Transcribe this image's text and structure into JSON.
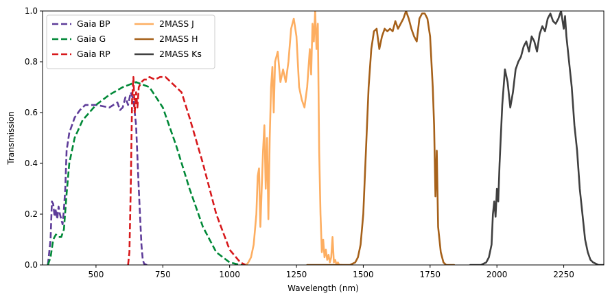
{
  "chart_data": {
    "type": "line",
    "title": "",
    "xlabel": "Wavelength (nm)",
    "ylabel": "Transmission",
    "xlim": [
      300,
      2400
    ],
    "ylim": [
      0,
      1
    ],
    "xticks": [
      500,
      750,
      1000,
      1250,
      1500,
      1750,
      2000,
      2250
    ],
    "yticks": [
      0.0,
      0.2,
      0.4,
      0.6,
      0.8,
      1.0
    ],
    "xtick_labels": [
      "500",
      "750",
      "1000",
      "1250",
      "1500",
      "1750",
      "2000",
      "2250"
    ],
    "ytick_labels": [
      "0.0",
      "0.2",
      "0.4",
      "0.6",
      "0.8",
      "1.0"
    ],
    "grid": false,
    "legend": {
      "placement": "top-left",
      "columns": 2
    },
    "series": [
      {
        "name": "Gaia BP",
        "color": "#5e3c99",
        "dash": "dashed",
        "x": [
          320,
          330,
          335,
          340,
          345,
          350,
          355,
          360,
          365,
          370,
          375,
          380,
          385,
          390,
          400,
          420,
          440,
          460,
          500,
          550,
          580,
          590,
          600,
          610,
          620,
          630,
          640,
          650,
          660,
          670,
          675,
          680,
          690,
          700
        ],
        "y": [
          0.0,
          0.1,
          0.25,
          0.24,
          0.19,
          0.22,
          0.18,
          0.23,
          0.2,
          0.18,
          0.16,
          0.22,
          0.3,
          0.45,
          0.52,
          0.58,
          0.61,
          0.63,
          0.63,
          0.62,
          0.64,
          0.61,
          0.62,
          0.66,
          0.63,
          0.68,
          0.65,
          0.55,
          0.3,
          0.08,
          0.02,
          0.005,
          0.0,
          0.0
        ]
      },
      {
        "name": "Gaia G",
        "color": "#008837",
        "dash": "dashed",
        "x": [
          320,
          330,
          340,
          350,
          360,
          370,
          380,
          390,
          400,
          420,
          450,
          500,
          550,
          600,
          650,
          700,
          750,
          800,
          850,
          900,
          950,
          1000,
          1020,
          1040,
          1050
        ],
        "y": [
          0.0,
          0.03,
          0.1,
          0.12,
          0.11,
          0.11,
          0.14,
          0.28,
          0.4,
          0.5,
          0.57,
          0.63,
          0.67,
          0.7,
          0.72,
          0.7,
          0.62,
          0.47,
          0.3,
          0.15,
          0.05,
          0.01,
          0.005,
          0.0,
          0.0
        ]
      },
      {
        "name": "Gaia RP",
        "color": "#d7191c",
        "dash": "dashed",
        "x": [
          620,
          625,
          630,
          635,
          640,
          645,
          650,
          655,
          660,
          670,
          680,
          690,
          700,
          720,
          740,
          760,
          780,
          800,
          820,
          850,
          900,
          950,
          1000,
          1040,
          1060,
          1070
        ],
        "y": [
          0.0,
          0.05,
          0.3,
          0.65,
          0.74,
          0.6,
          0.68,
          0.62,
          0.7,
          0.72,
          0.73,
          0.73,
          0.74,
          0.73,
          0.74,
          0.74,
          0.72,
          0.7,
          0.68,
          0.58,
          0.4,
          0.2,
          0.06,
          0.01,
          0.0,
          0.0
        ]
      },
      {
        "name": "2MASS J",
        "color": "#fdae61",
        "dash": "solid",
        "x": [
          1062,
          1070,
          1080,
          1090,
          1100,
          1105,
          1110,
          1115,
          1120,
          1125,
          1130,
          1135,
          1140,
          1145,
          1150,
          1155,
          1160,
          1165,
          1170,
          1180,
          1190,
          1200,
          1210,
          1220,
          1230,
          1240,
          1250,
          1260,
          1270,
          1280,
          1290,
          1300,
          1305,
          1310,
          1315,
          1320,
          1325,
          1330,
          1335,
          1340,
          1345,
          1350,
          1355,
          1360,
          1365,
          1370,
          1375,
          1380,
          1385,
          1390,
          1395,
          1400,
          1405,
          1410,
          1415,
          1420
        ],
        "y": [
          0.0,
          0.01,
          0.03,
          0.08,
          0.2,
          0.35,
          0.38,
          0.15,
          0.3,
          0.45,
          0.55,
          0.3,
          0.5,
          0.18,
          0.5,
          0.7,
          0.78,
          0.6,
          0.8,
          0.84,
          0.72,
          0.77,
          0.72,
          0.8,
          0.93,
          0.97,
          0.9,
          0.7,
          0.65,
          0.62,
          0.7,
          0.85,
          0.75,
          0.95,
          0.88,
          1.0,
          0.85,
          0.95,
          0.45,
          0.2,
          0.05,
          0.1,
          0.03,
          0.06,
          0.02,
          0.04,
          0.01,
          0.03,
          0.11,
          0.01,
          0.02,
          0.0,
          0.01,
          0.0,
          0.0,
          0.0
        ]
      },
      {
        "name": "2MASS H",
        "color": "#a6611a",
        "dash": "solid",
        "x": [
          1290,
          1400,
          1450,
          1470,
          1480,
          1490,
          1500,
          1510,
          1520,
          1530,
          1540,
          1550,
          1560,
          1570,
          1580,
          1590,
          1600,
          1610,
          1620,
          1630,
          1640,
          1650,
          1660,
          1670,
          1680,
          1690,
          1700,
          1710,
          1720,
          1730,
          1740,
          1750,
          1760,
          1765,
          1770,
          1775,
          1780,
          1790,
          1800,
          1810,
          1820,
          1840
        ],
        "y": [
          0.0,
          0.0,
          0.0,
          0.01,
          0.03,
          0.08,
          0.2,
          0.45,
          0.7,
          0.85,
          0.92,
          0.93,
          0.85,
          0.9,
          0.93,
          0.92,
          0.93,
          0.92,
          0.96,
          0.93,
          0.95,
          0.97,
          1.0,
          0.97,
          0.93,
          0.9,
          0.88,
          0.97,
          0.99,
          0.99,
          0.97,
          0.9,
          0.7,
          0.55,
          0.27,
          0.45,
          0.15,
          0.05,
          0.01,
          0.0,
          0.0,
          0.0
        ]
      },
      {
        "name": "2MASS Ks",
        "color": "#404040",
        "dash": "solid",
        "x": [
          1900,
          1940,
          1960,
          1970,
          1980,
          1985,
          1990,
          1995,
          2000,
          2005,
          2010,
          2020,
          2030,
          2040,
          2050,
          2060,
          2070,
          2080,
          2090,
          2100,
          2110,
          2120,
          2130,
          2140,
          2150,
          2160,
          2170,
          2180,
          2190,
          2200,
          2210,
          2220,
          2230,
          2240,
          2250,
          2255,
          2260,
          2270,
          2280,
          2290,
          2300,
          2310,
          2320,
          2330,
          2340,
          2350,
          2360,
          2380,
          2400
        ],
        "y": [
          0.0,
          0.0,
          0.01,
          0.03,
          0.08,
          0.2,
          0.25,
          0.19,
          0.3,
          0.25,
          0.4,
          0.63,
          0.77,
          0.72,
          0.62,
          0.68,
          0.77,
          0.8,
          0.82,
          0.86,
          0.88,
          0.84,
          0.9,
          0.88,
          0.84,
          0.91,
          0.94,
          0.92,
          0.97,
          0.99,
          0.96,
          0.95,
          0.97,
          1.0,
          0.93,
          0.98,
          0.9,
          0.8,
          0.7,
          0.55,
          0.45,
          0.3,
          0.2,
          0.1,
          0.05,
          0.02,
          0.01,
          0.0,
          0.0
        ]
      }
    ]
  }
}
